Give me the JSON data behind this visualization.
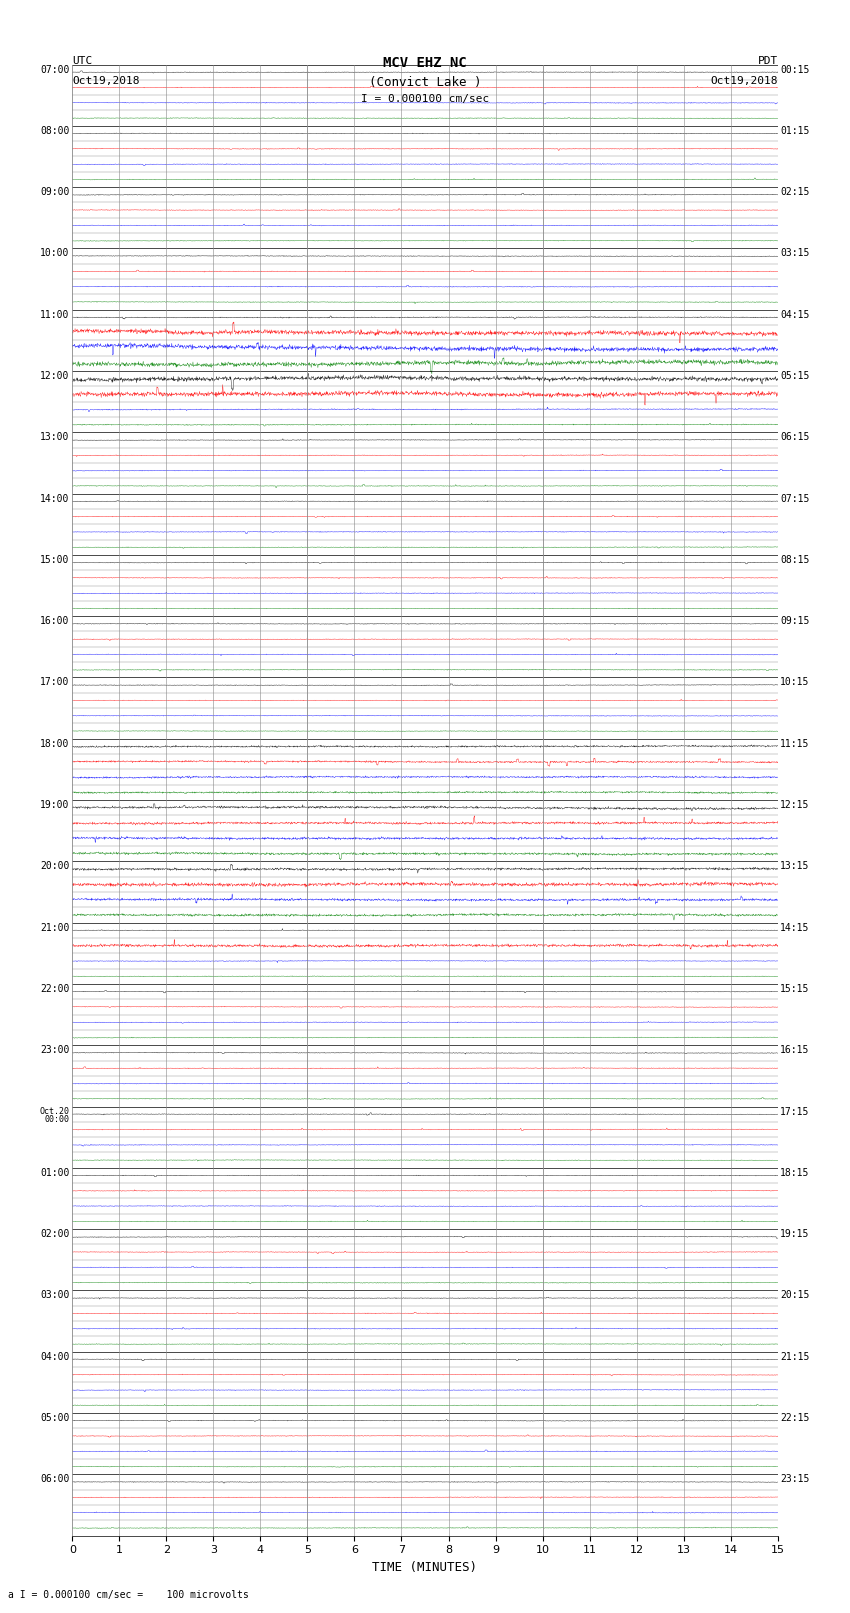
{
  "title_line1": "MCV EHZ NC",
  "title_line2": "(Convict Lake )",
  "scale_label": "I = 0.000100 cm/sec",
  "utc_label": "UTC",
  "pdt_label": "PDT",
  "date_left": "Oct19,2018",
  "date_right": "Oct19,2018",
  "bottom_label": "a I = 0.000100 cm/sec =    100 microvolts",
  "xlabel": "TIME (MINUTES)",
  "xlim": [
    0,
    15
  ],
  "xticks": [
    0,
    1,
    2,
    3,
    4,
    5,
    6,
    7,
    8,
    9,
    10,
    11,
    12,
    13,
    14,
    15
  ],
  "fig_width": 8.5,
  "fig_height": 16.13,
  "dpi": 100,
  "bg_color": "#ffffff",
  "grid_color_v": "#aaaaaa",
  "grid_color_h": "#000000",
  "colors_cycle": [
    "black",
    "red",
    "blue",
    "green"
  ],
  "n_hours": 24,
  "rows_per_hour": 4,
  "left_labels": [
    "07:00",
    "08:00",
    "09:00",
    "10:00",
    "11:00",
    "12:00",
    "13:00",
    "14:00",
    "15:00",
    "16:00",
    "17:00",
    "18:00",
    "19:00",
    "20:00",
    "21:00",
    "22:00",
    "23:00",
    "Oct.20\n00:00",
    "01:00",
    "02:00",
    "03:00",
    "04:00",
    "05:00",
    "06:00"
  ],
  "right_labels": [
    "00:15",
    "01:15",
    "02:15",
    "03:15",
    "04:15",
    "05:15",
    "06:15",
    "07:15",
    "08:15",
    "09:15",
    "10:15",
    "11:15",
    "12:15",
    "13:15",
    "14:15",
    "15:15",
    "16:15",
    "17:15",
    "18:15",
    "19:15",
    "20:15",
    "21:15",
    "22:15",
    "23:15"
  ],
  "seed": 12345
}
